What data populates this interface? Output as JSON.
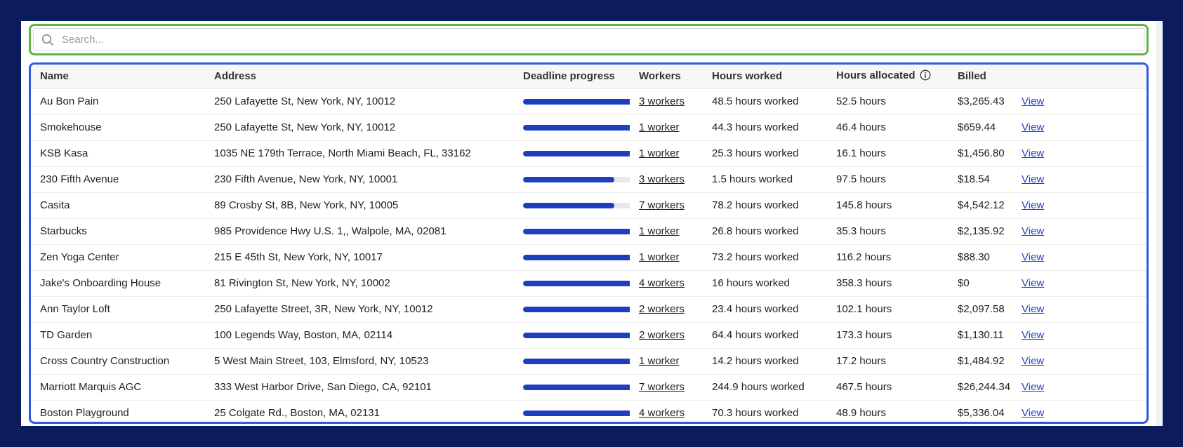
{
  "search": {
    "placeholder": "Search..."
  },
  "table": {
    "columns": {
      "name": "Name",
      "address": "Address",
      "deadline_progress": "Deadline progress",
      "workers": "Workers",
      "hours_worked": "Hours worked",
      "hours_allocated": "Hours allocated",
      "billed": "Billed"
    },
    "rows": [
      {
        "name": "Au Bon Pain",
        "address": "250 Lafayette St, New York, NY, 10012",
        "progress_percent": 100,
        "workers": "3 workers",
        "hours_worked": "48.5 hours worked",
        "hours_allocated": "52.5 hours",
        "billed": "$3,265.43",
        "action": "View"
      },
      {
        "name": "Smokehouse",
        "address": "250 Lafayette St, New York, NY, 10012",
        "progress_percent": 100,
        "workers": "1 worker",
        "hours_worked": "44.3 hours worked",
        "hours_allocated": "46.4 hours",
        "billed": "$659.44",
        "action": "View"
      },
      {
        "name": "KSB Kasa",
        "address": "1035 NE 179th Terrace, North Miami Beach, FL, 33162",
        "progress_percent": 100,
        "workers": "1 worker",
        "hours_worked": "25.3 hours worked",
        "hours_allocated": "16.1 hours",
        "billed": "$1,456.80",
        "action": "View"
      },
      {
        "name": "230 Fifth Avenue",
        "address": "230 Fifth Avenue, New York, NY, 10001",
        "progress_percent": 80,
        "workers": "3 workers",
        "hours_worked": "1.5 hours worked",
        "hours_allocated": "97.5 hours",
        "billed": "$18.54",
        "action": "View"
      },
      {
        "name": "Casita",
        "address": "89 Crosby St, 8B, New York, NY, 10005",
        "progress_percent": 80,
        "workers": "7 workers",
        "hours_worked": "78.2 hours worked",
        "hours_allocated": "145.8 hours",
        "billed": "$4,542.12",
        "action": "View"
      },
      {
        "name": "Starbucks",
        "address": "985 Providence Hwy U.S. 1,, Walpole, MA, 02081",
        "progress_percent": 100,
        "workers": "1 worker",
        "hours_worked": "26.8 hours worked",
        "hours_allocated": "35.3 hours",
        "billed": "$2,135.92",
        "action": "View"
      },
      {
        "name": "Zen Yoga Center",
        "address": "215 E 45th St, New York, NY, 10017",
        "progress_percent": 100,
        "workers": "1 worker",
        "hours_worked": "73.2 hours worked",
        "hours_allocated": "116.2 hours",
        "billed": "$88.30",
        "action": "View"
      },
      {
        "name": "Jake's Onboarding House",
        "address": "81 Rivington St, New York, NY, 10002",
        "progress_percent": 100,
        "workers": "4 workers",
        "hours_worked": "16 hours worked",
        "hours_allocated": "358.3 hours",
        "billed": "$0",
        "action": "View"
      },
      {
        "name": "Ann Taylor Loft",
        "address": "250 Lafayette Street, 3R, New York, NY, 10012",
        "progress_percent": 100,
        "workers": "2 workers",
        "hours_worked": "23.4 hours worked",
        "hours_allocated": "102.1 hours",
        "billed": "$2,097.58",
        "action": "View"
      },
      {
        "name": "TD Garden",
        "address": "100 Legends Way, Boston, MA, 02114",
        "progress_percent": 100,
        "workers": "2 workers",
        "hours_worked": "64.4 hours worked",
        "hours_allocated": "173.3 hours",
        "billed": "$1,130.11",
        "action": "View"
      },
      {
        "name": "Cross Country Construction",
        "address": "5 West Main Street, 103, Elmsford, NY, 10523",
        "progress_percent": 100,
        "workers": "1 worker",
        "hours_worked": "14.2 hours worked",
        "hours_allocated": "17.2 hours",
        "billed": "$1,484.92",
        "action": "View"
      },
      {
        "name": "Marriott Marquis AGC",
        "address": "333 West Harbor Drive, San Diego, CA, 92101",
        "progress_percent": 100,
        "workers": "7 workers",
        "hours_worked": "244.9 hours worked",
        "hours_allocated": "467.5 hours",
        "billed": "$26,244.34",
        "action": "View"
      },
      {
        "name": "Boston Playground",
        "address": "25 Colgate Rd., Boston, MA, 02131",
        "progress_percent": 100,
        "workers": "4 workers",
        "hours_worked": "70.3 hours worked",
        "hours_allocated": "48.9 hours",
        "billed": "$5,336.04",
        "action": "View"
      }
    ]
  },
  "colors": {
    "background": "#0c1b5c",
    "search_outline": "#5cb545",
    "table_outline": "#2f5ae0",
    "progress_fill": "#1d3fbf",
    "link": "#1c47c8"
  },
  "icons": {
    "search": "search-icon",
    "info": "info-icon"
  }
}
